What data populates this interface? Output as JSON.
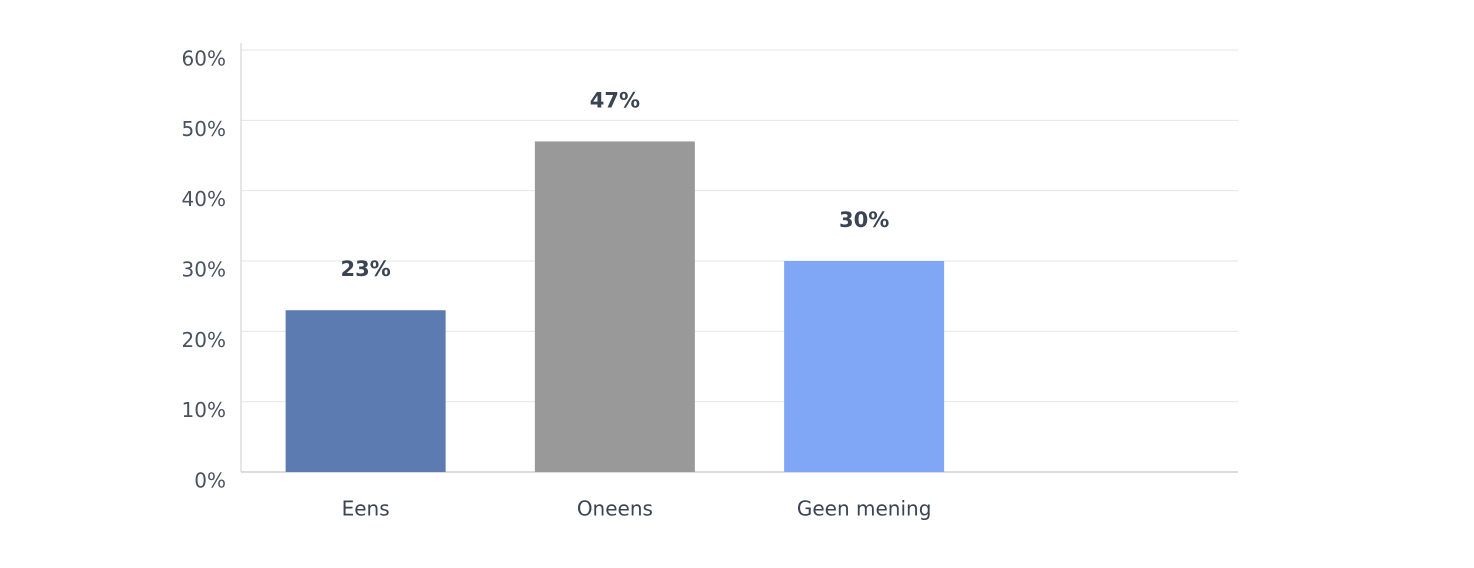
{
  "chart_data": {
    "type": "bar",
    "categories": [
      "Eens",
      "Oneens",
      "Geen mening",
      null
    ],
    "values": [
      23,
      47,
      30,
      null
    ],
    "value_labels": [
      "23%",
      "47%",
      "30%",
      null
    ],
    "colors": [
      "#5b7bb1",
      "#999999",
      "#7fa7f5",
      null
    ],
    "ylim": [
      0,
      60
    ],
    "yticks": [
      {
        "value": 0,
        "label": "0%"
      },
      {
        "value": 10,
        "label": "10%"
      },
      {
        "value": 20,
        "label": "20%"
      },
      {
        "value": 30,
        "label": "30%"
      },
      {
        "value": 40,
        "label": "40%"
      },
      {
        "value": 50,
        "label": "50%"
      },
      {
        "value": 60,
        "label": "60%"
      }
    ],
    "grid": true
  }
}
